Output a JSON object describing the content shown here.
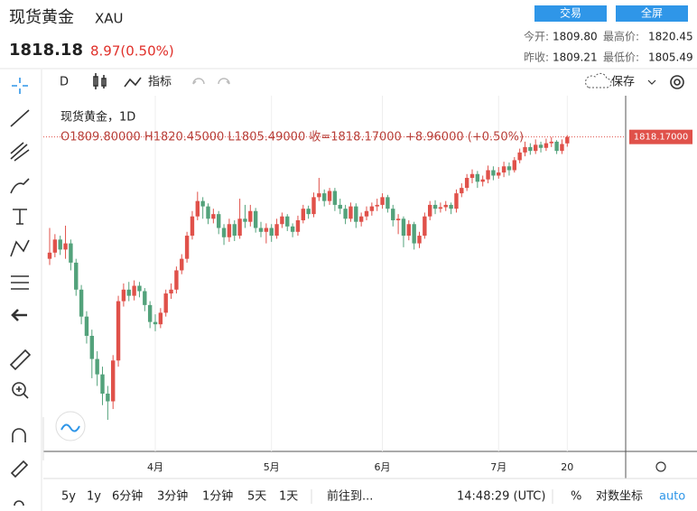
{
  "header": {
    "name": "现货黄金",
    "symbol": "XAU",
    "price": "1818.18",
    "change": "8.97(0.50%)",
    "buttons": [
      "交易",
      "全屏"
    ],
    "stats": [
      {
        "label": "今开:",
        "value": "1809.80"
      },
      {
        "label": "最高价:",
        "value": "1820.45"
      },
      {
        "label": "昨收:",
        "value": "1809.21"
      },
      {
        "label": "最低价:",
        "value": "1805.49"
      }
    ]
  },
  "toolbar": {
    "interval": "D",
    "indicators": "指标",
    "save": "保存"
  },
  "bottom_bar": {
    "ranges": [
      "5y",
      "1y",
      "6分钟",
      "3分钟",
      "1分钟",
      "5天",
      "1天"
    ],
    "goto": "前往到...",
    "time": "14:48:29 (UTC)",
    "percent": "%",
    "log": "对数坐标",
    "auto": "auto"
  },
  "chart_data": {
    "type": "candlestick",
    "title": "现货黄金，1D",
    "ohlc_legend": "O1809.80000 H1820.45000 L1805.49000 收=1818.17000 +8.96000 (+0.50%)",
    "price_label": "1818.17000",
    "categories": [
      null,
      null,
      null,
      null,
      null,
      null,
      null,
      null,
      null,
      null,
      null,
      null,
      null,
      null,
      null,
      null,
      null,
      null,
      null,
      null,
      "4月",
      null,
      null,
      null,
      null,
      null,
      null,
      null,
      null,
      null,
      null,
      null,
      null,
      null,
      null,
      null,
      null,
      null,
      null,
      null,
      null,
      null,
      "5月",
      null,
      null,
      null,
      null,
      null,
      null,
      null,
      null,
      null,
      null,
      null,
      null,
      null,
      null,
      null,
      null,
      null,
      null,
      null,
      null,
      "6月",
      null,
      null,
      null,
      null,
      null,
      null,
      null,
      null,
      null,
      null,
      null,
      null,
      null,
      null,
      null,
      null,
      null,
      null,
      null,
      null,
      null,
      "7月",
      null,
      null,
      null,
      null,
      null,
      null,
      null,
      null,
      null,
      null,
      null,
      null,
      "20"
    ],
    "open": [
      1660,
      1668,
      1685,
      1672,
      1680,
      1655,
      1620,
      1585,
      1560,
      1530,
      1510,
      1485,
      1475,
      1528,
      1605,
      1620,
      1612,
      1625,
      1618,
      1600,
      1578,
      1575,
      1590,
      1615,
      1620,
      1645,
      1660,
      1690,
      1715,
      1735,
      1728,
      1712,
      1718,
      1700,
      1688,
      1705,
      1690,
      1712,
      1708,
      1722,
      1700,
      1695,
      1700,
      1690,
      1705,
      1715,
      1702,
      1695,
      1710,
      1725,
      1718,
      1740,
      1745,
      1735,
      1748,
      1730,
      1725,
      1712,
      1728,
      1708,
      1715,
      1722,
      1728,
      1730,
      1740,
      1725,
      1710,
      1712,
      1690,
      1705,
      1680,
      1690,
      1715,
      1730,
      1725,
      1727,
      1730,
      1725,
      1745,
      1752,
      1765,
      1770,
      1760,
      1763,
      1775,
      1768,
      1772,
      1780,
      1775,
      1788,
      1798,
      1805,
      1800,
      1808,
      1804,
      1810,
      1812,
      1800,
      1809.8
    ],
    "high": [
      1700,
      1692,
      1690,
      1703,
      1685,
      1660,
      1626,
      1592,
      1568,
      1540,
      1520,
      1495,
      1535,
      1612,
      1628,
      1630,
      1632,
      1630,
      1622,
      1605,
      1588,
      1596,
      1620,
      1628,
      1650,
      1666,
      1695,
      1722,
      1747,
      1740,
      1732,
      1725,
      1722,
      1705,
      1712,
      1710,
      1738,
      1730,
      1730,
      1726,
      1708,
      1706,
      1705,
      1712,
      1720,
      1718,
      1706,
      1716,
      1730,
      1729,
      1746,
      1765,
      1750,
      1752,
      1752,
      1738,
      1730,
      1733,
      1732,
      1720,
      1728,
      1733,
      1738,
      1745,
      1743,
      1730,
      1718,
      1715,
      1710,
      1708,
      1695,
      1720,
      1735,
      1736,
      1733,
      1735,
      1733,
      1750,
      1758,
      1770,
      1776,
      1774,
      1768,
      1781,
      1780,
      1779,
      1786,
      1785,
      1792,
      1803,
      1812,
      1810,
      1815,
      1812,
      1816,
      1818,
      1814,
      1815,
      1820.45
    ],
    "low": [
      1652,
      1662,
      1665,
      1660,
      1645,
      1612,
      1575,
      1550,
      1505,
      1495,
      1470,
      1451,
      1465,
      1520,
      1598,
      1605,
      1606,
      1610,
      1592,
      1570,
      1566,
      1570,
      1585,
      1608,
      1615,
      1640,
      1655,
      1685,
      1710,
      1712,
      1705,
      1706,
      1692,
      1678,
      1682,
      1683,
      1686,
      1700,
      1702,
      1694,
      1688,
      1680,
      1682,
      1686,
      1700,
      1696,
      1688,
      1690,
      1706,
      1712,
      1714,
      1735,
      1728,
      1730,
      1722,
      1718,
      1705,
      1708,
      1700,
      1702,
      1710,
      1716,
      1722,
      1725,
      1720,
      1702,
      1692,
      1675,
      1684,
      1672,
      1674,
      1686,
      1710,
      1718,
      1720,
      1722,
      1718,
      1720,
      1740,
      1748,
      1758,
      1752,
      1754,
      1758,
      1762,
      1764,
      1766,
      1768,
      1772,
      1784,
      1793,
      1795,
      1796,
      1798,
      1800,
      1805,
      1796,
      1796,
      1805.49
    ],
    "close": [
      1668,
      1685,
      1672,
      1680,
      1655,
      1620,
      1585,
      1560,
      1530,
      1510,
      1485,
      1475,
      1528,
      1605,
      1620,
      1612,
      1625,
      1618,
      1600,
      1578,
      1575,
      1590,
      1615,
      1620,
      1645,
      1660,
      1690,
      1715,
      1735,
      1728,
      1712,
      1718,
      1700,
      1688,
      1705,
      1690,
      1712,
      1708,
      1722,
      1700,
      1695,
      1700,
      1690,
      1705,
      1715,
      1702,
      1695,
      1710,
      1725,
      1718,
      1740,
      1745,
      1735,
      1748,
      1730,
      1725,
      1712,
      1728,
      1708,
      1715,
      1722,
      1728,
      1730,
      1740,
      1725,
      1710,
      1712,
      1690,
      1705,
      1680,
      1690,
      1715,
      1730,
      1725,
      1727,
      1730,
      1725,
      1745,
      1752,
      1765,
      1770,
      1760,
      1763,
      1775,
      1768,
      1772,
      1780,
      1775,
      1788,
      1798,
      1805,
      1800,
      1808,
      1804,
      1810,
      1812,
      1800,
      1809,
      1818.17
    ],
    "up_color": "#e0514a",
    "down_color": "#53a27b",
    "ylim": [
      1410,
      1867
    ]
  }
}
